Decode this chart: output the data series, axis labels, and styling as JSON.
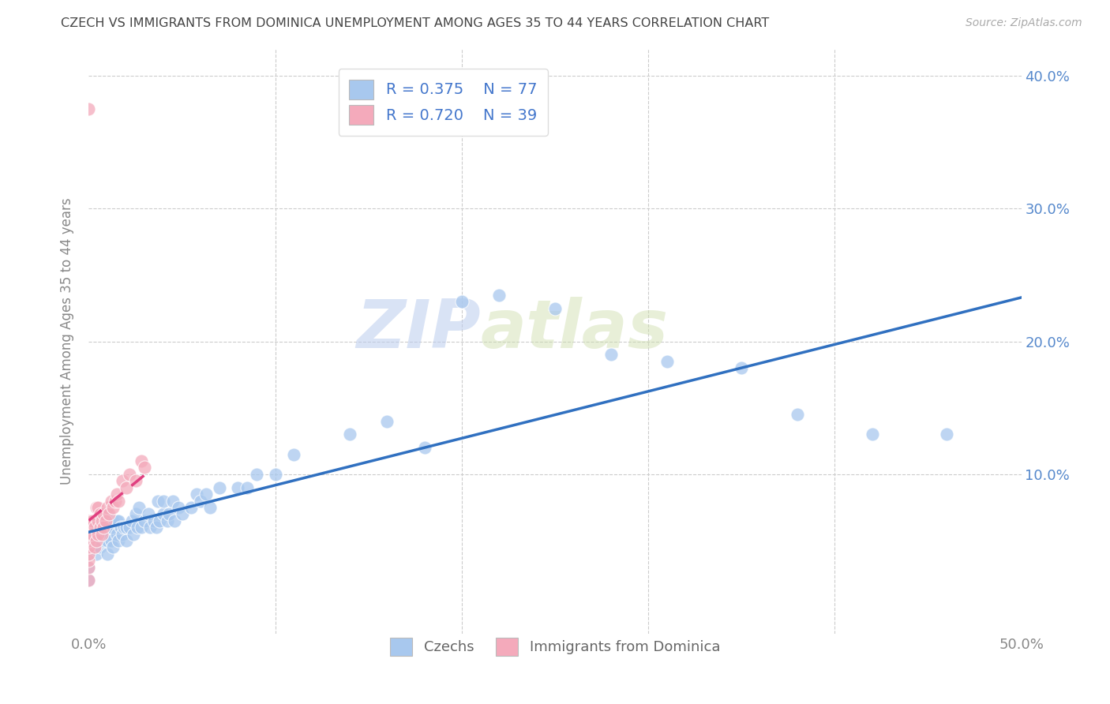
{
  "title": "CZECH VS IMMIGRANTS FROM DOMINICA UNEMPLOYMENT AMONG AGES 35 TO 44 YEARS CORRELATION CHART",
  "source_text": "Source: ZipAtlas.com",
  "ylabel": "Unemployment Among Ages 35 to 44 years",
  "xlim": [
    0.0,
    0.5
  ],
  "ylim": [
    -0.02,
    0.42
  ],
  "xticks": [
    0.0,
    0.1,
    0.2,
    0.3,
    0.4,
    0.5
  ],
  "yticks": [
    0.0,
    0.1,
    0.2,
    0.3,
    0.4
  ],
  "xticklabels": [
    "0.0%",
    "",
    "",
    "",
    "",
    "50.0%"
  ],
  "yticklabels_right": [
    "40.0%",
    "30.0%",
    "20.0%",
    "10.0%"
  ],
  "blue_scatter_color": "#A8C8EE",
  "pink_scatter_color": "#F4AABB",
  "blue_line_color": "#3070C0",
  "pink_line_color": "#E04080",
  "legend_r_blue": "R = 0.375",
  "legend_n_blue": "N = 77",
  "legend_r_pink": "R = 0.720",
  "legend_n_pink": "N = 39",
  "legend_label_blue": "Czechs",
  "legend_label_pink": "Immigrants from Dominica",
  "watermark_zip": "ZIP",
  "watermark_atlas": "atlas",
  "czech_x": [
    0.0,
    0.0,
    0.0,
    0.0,
    0.0,
    0.004,
    0.004,
    0.005,
    0.005,
    0.006,
    0.006,
    0.007,
    0.007,
    0.008,
    0.01,
    0.01,
    0.01,
    0.01,
    0.011,
    0.012,
    0.012,
    0.013,
    0.013,
    0.015,
    0.015,
    0.016,
    0.016,
    0.017,
    0.018,
    0.019,
    0.02,
    0.02,
    0.022,
    0.023,
    0.024,
    0.025,
    0.026,
    0.027,
    0.028,
    0.03,
    0.032,
    0.033,
    0.035,
    0.036,
    0.037,
    0.038,
    0.04,
    0.04,
    0.042,
    0.043,
    0.045,
    0.046,
    0.048,
    0.05,
    0.055,
    0.058,
    0.06,
    0.063,
    0.065,
    0.07,
    0.08,
    0.085,
    0.09,
    0.1,
    0.11,
    0.14,
    0.16,
    0.18,
    0.2,
    0.22,
    0.25,
    0.28,
    0.31,
    0.35,
    0.38,
    0.42,
    0.46
  ],
  "czech_y": [
    0.02,
    0.03,
    0.04,
    0.05,
    0.06,
    0.04,
    0.05,
    0.055,
    0.065,
    0.045,
    0.06,
    0.05,
    0.06,
    0.055,
    0.04,
    0.05,
    0.06,
    0.07,
    0.055,
    0.05,
    0.06,
    0.045,
    0.065,
    0.055,
    0.065,
    0.05,
    0.065,
    0.06,
    0.055,
    0.06,
    0.05,
    0.06,
    0.06,
    0.065,
    0.055,
    0.07,
    0.06,
    0.075,
    0.06,
    0.065,
    0.07,
    0.06,
    0.065,
    0.06,
    0.08,
    0.065,
    0.07,
    0.08,
    0.065,
    0.07,
    0.08,
    0.065,
    0.075,
    0.07,
    0.075,
    0.085,
    0.08,
    0.085,
    0.075,
    0.09,
    0.09,
    0.09,
    0.1,
    0.1,
    0.115,
    0.13,
    0.14,
    0.12,
    0.23,
    0.235,
    0.225,
    0.19,
    0.185,
    0.18,
    0.145,
    0.13,
    0.13
  ],
  "dominica_x": [
    0.0,
    0.0,
    0.0,
    0.0,
    0.0,
    0.0,
    0.0,
    0.0,
    0.0,
    0.0,
    0.002,
    0.002,
    0.003,
    0.003,
    0.004,
    0.004,
    0.005,
    0.005,
    0.005,
    0.006,
    0.006,
    0.007,
    0.007,
    0.008,
    0.008,
    0.009,
    0.01,
    0.011,
    0.012,
    0.013,
    0.014,
    0.015,
    0.016,
    0.018,
    0.02,
    0.022,
    0.025,
    0.028,
    0.03
  ],
  "dominica_y": [
    0.02,
    0.03,
    0.035,
    0.04,
    0.045,
    0.05,
    0.055,
    0.06,
    0.065,
    0.375,
    0.055,
    0.065,
    0.045,
    0.06,
    0.05,
    0.075,
    0.055,
    0.065,
    0.075,
    0.06,
    0.07,
    0.055,
    0.065,
    0.06,
    0.07,
    0.065,
    0.075,
    0.07,
    0.08,
    0.075,
    0.08,
    0.085,
    0.08,
    0.095,
    0.09,
    0.1,
    0.095,
    0.11,
    0.105
  ]
}
